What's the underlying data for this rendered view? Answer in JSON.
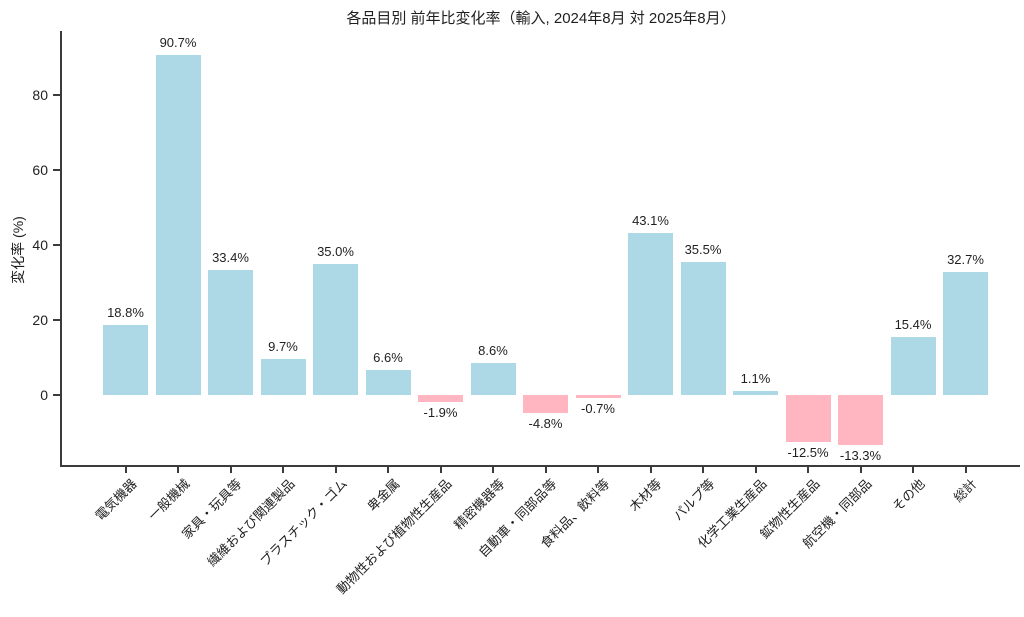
{
  "figure": {
    "title": "各品目別 前年比変化率（輸入, 2024年8月 対 2025年8月）",
    "ylabel": "変化率 (%)"
  },
  "chart_data": {
    "type": "bar",
    "title": "各品目別 前年比変化率（輸入, 2024年8月 対 2025年8月）",
    "xlabel": "",
    "ylabel": "変化率 (%)",
    "categories": [
      "電気機器",
      "一般機械",
      "家具・玩具等",
      "繊維および関連製品",
      "プラスチック・ゴム",
      "卑金属",
      "動物性および植物性生産品",
      "精密機器等",
      "自動車・同部品等",
      "食料品、飲料等",
      "木材等",
      "パルプ等",
      "化学工業生産品",
      "鉱物性生産品",
      "航空機・同部品",
      "その他",
      "総計"
    ],
    "values": [
      18.8,
      90.7,
      33.4,
      9.7,
      35.0,
      6.6,
      -1.9,
      8.6,
      -4.8,
      -0.7,
      43.1,
      35.5,
      1.1,
      -12.5,
      -13.3,
      15.4,
      32.7
    ],
    "value_label_suffix": "%",
    "yticks": [
      0,
      20,
      40,
      60,
      80
    ],
    "ylim": [
      -19.5,
      97
    ],
    "grid": false,
    "legend": null,
    "x_tick_rotation_deg": 45,
    "colors": {
      "positive_bar": "#ADD8E6",
      "negative_bar": "#FFB6C1",
      "axis": "#3b3b3b",
      "text": "#1f1f1f",
      "background": "#ffffff"
    }
  }
}
